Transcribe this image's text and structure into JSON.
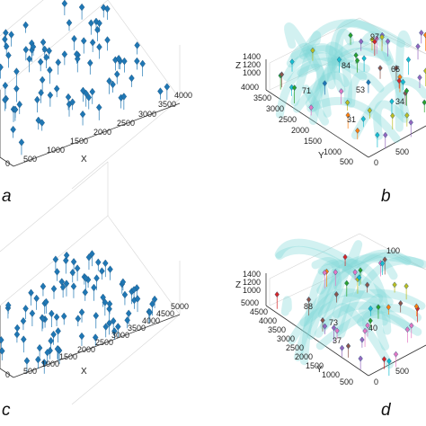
{
  "chart_data": [
    {
      "id": "a",
      "type": "scatter",
      "panel_label": "a",
      "xlabel": "X",
      "ylabel": "",
      "zlabel": "",
      "x_ticks": [
        "500",
        "1000",
        "1500",
        "2000",
        "2500",
        "3000",
        "3500",
        "4000"
      ],
      "y_ticks": [
        "0"
      ],
      "grid": true,
      "marker_color": "#1f77b4"
    },
    {
      "id": "b",
      "type": "scatter",
      "panel_label": "b",
      "xlabel": "",
      "ylabel": "Y",
      "zlabel": "Z",
      "y_ticks": [
        "500",
        "1000",
        "1500",
        "2000",
        "2500",
        "3000",
        "3500",
        "4000"
      ],
      "x_ticks": [
        "0",
        "500"
      ],
      "z_ticks": [
        "1000",
        "1200",
        "1400"
      ],
      "grid": true,
      "node_labels": [
        "97",
        "84",
        "66",
        "71",
        "53",
        "34",
        "31"
      ]
    },
    {
      "id": "c",
      "type": "scatter",
      "panel_label": "c",
      "xlabel": "X",
      "ylabel": "",
      "zlabel": "",
      "x_ticks": [
        "500",
        "1000",
        "1500",
        "2000",
        "2500",
        "3000",
        "3500",
        "4000",
        "4500",
        "5000"
      ],
      "y_ticks": [
        "0"
      ],
      "grid": true,
      "marker_color": "#1f77b4"
    },
    {
      "id": "d",
      "type": "scatter",
      "panel_label": "d",
      "xlabel": "",
      "ylabel": "Y",
      "zlabel": "Z",
      "y_ticks": [
        "500",
        "1000",
        "1500",
        "2000",
        "2500",
        "3000",
        "3500",
        "4000",
        "4500",
        "5000"
      ],
      "x_ticks": [
        "0",
        "500"
      ],
      "z_ticks": [
        "1000",
        "1200",
        "1400"
      ],
      "grid": true,
      "node_labels": [
        "100",
        "88",
        "73",
        "40",
        "37"
      ]
    }
  ],
  "colors": {
    "marker": "#1f77b4",
    "tube": "#7fd8d8",
    "path_palette": [
      "#d62728",
      "#2ca02c",
      "#9467bd",
      "#ff7f0e",
      "#1f77b4",
      "#8c564b",
      "#e377c2",
      "#bcbd22",
      "#17becf"
    ]
  }
}
